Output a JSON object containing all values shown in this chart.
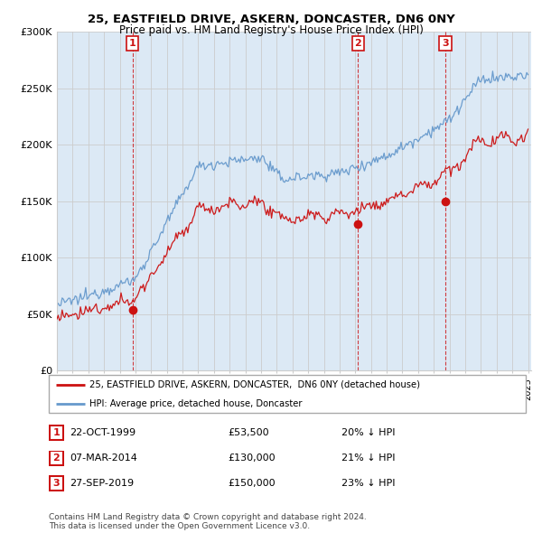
{
  "title": "25, EASTFIELD DRIVE, ASKERN, DONCASTER, DN6 0NY",
  "subtitle": "Price paid vs. HM Land Registry's House Price Index (HPI)",
  "ylim": [
    0,
    300000
  ],
  "yticks": [
    0,
    50000,
    100000,
    150000,
    200000,
    250000,
    300000
  ],
  "ytick_labels": [
    "£0",
    "£50K",
    "£100K",
    "£150K",
    "£200K",
    "£250K",
    "£300K"
  ],
  "hpi_color": "#6699cc",
  "price_color": "#cc1111",
  "grid_color": "#cccccc",
  "bg_color": "#dce9f5",
  "sale_dates": [
    1999.81,
    2014.18,
    2019.74
  ],
  "sale_prices": [
    53500,
    130000,
    150000
  ],
  "sale_labels": [
    "1",
    "2",
    "3"
  ],
  "legend_entries": [
    "25, EASTFIELD DRIVE, ASKERN, DONCASTER,  DN6 0NY (detached house)",
    "HPI: Average price, detached house, Doncaster"
  ],
  "table_rows": [
    [
      "1",
      "22-OCT-1999",
      "£53,500",
      "20% ↓ HPI"
    ],
    [
      "2",
      "07-MAR-2014",
      "£130,000",
      "21% ↓ HPI"
    ],
    [
      "3",
      "27-SEP-2019",
      "£150,000",
      "23% ↓ HPI"
    ]
  ],
  "footnote": "Contains HM Land Registry data © Crown copyright and database right 2024.\nThis data is licensed under the Open Government Licence v3.0."
}
